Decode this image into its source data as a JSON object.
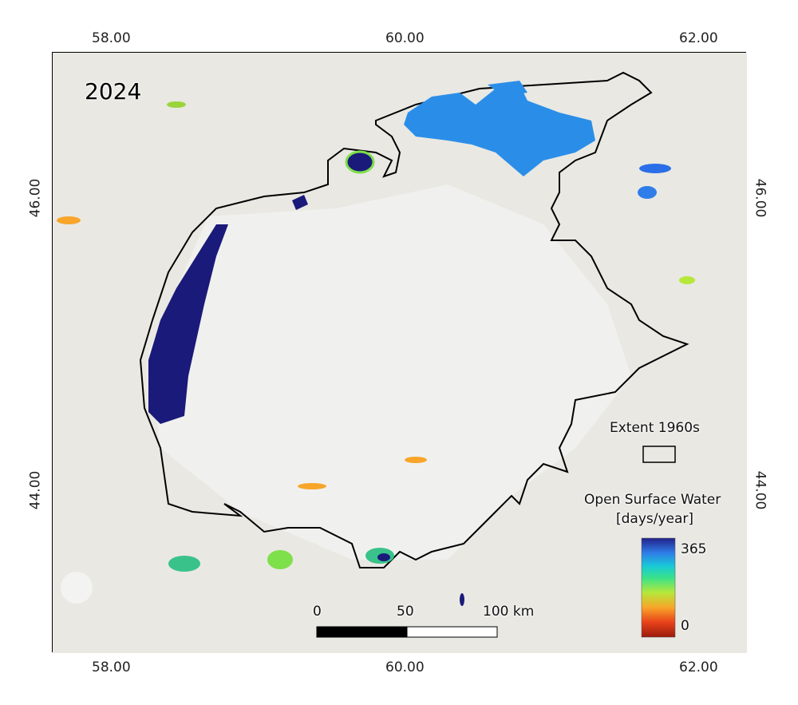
{
  "map": {
    "year_label": "2024",
    "x_ticks": [
      "58.00",
      "60.00",
      "62.00"
    ],
    "y_ticks": [
      "46.00",
      "44.00"
    ],
    "legend": {
      "extent_title": "Extent 1960s",
      "water_title": "Open Surface Water",
      "water_unit": "[days/year]",
      "max_label": "365",
      "min_label": "0",
      "colormap": [
        "#9b1b0e",
        "#e8421a",
        "#f8a52a",
        "#b5e83a",
        "#39e28a",
        "#18c8d8",
        "#2f7de8",
        "#23218a"
      ]
    },
    "scale_bar": {
      "labels": [
        "0",
        "50",
        "100 km"
      ]
    },
    "colors": {
      "outline": "#000000",
      "deep_water": "#1a1a7a",
      "seasonal_water": "#2a8ee8",
      "background": "#e9e8e3"
    }
  }
}
